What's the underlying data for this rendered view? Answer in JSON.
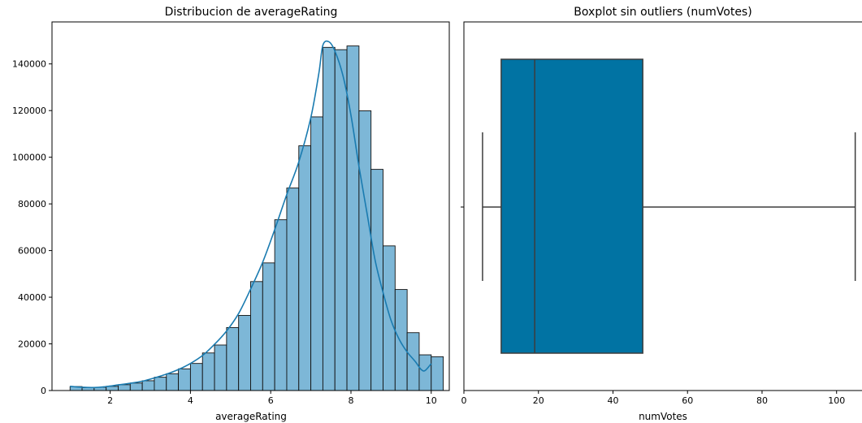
{
  "chart_data": [
    {
      "type": "histogram",
      "title": "Distribucion de averageRating",
      "xlabel": "averageRating",
      "ylabel": "",
      "xlim": [
        0.55,
        10.45
      ],
      "ylim": [
        0,
        158000
      ],
      "xticks": [
        2,
        4,
        6,
        8,
        10
      ],
      "yticks": [
        0,
        20000,
        40000,
        60000,
        80000,
        100000,
        120000,
        140000
      ],
      "bins": {
        "start": 1.0,
        "width": 0.3,
        "counts": [
          1700,
          1200,
          1400,
          1800,
          2500,
          3200,
          4200,
          5700,
          7200,
          9300,
          11600,
          16100,
          19500,
          27000,
          32200,
          46700,
          54700,
          73200,
          86800,
          104900,
          117300,
          147100,
          146100,
          147700,
          119900,
          94800,
          62000,
          43300,
          24800,
          15300,
          14500
        ]
      },
      "colors": {
        "bar": "#7db7d7",
        "edge": "#111111",
        "kde": "#1a7bb0"
      },
      "kde": [
        [
          1.0,
          1800
        ],
        [
          1.3,
          1400
        ],
        [
          1.6,
          1300
        ],
        [
          1.9,
          1700
        ],
        [
          2.2,
          2400
        ],
        [
          2.5,
          3100
        ],
        [
          2.8,
          4000
        ],
        [
          3.1,
          5400
        ],
        [
          3.4,
          7000
        ],
        [
          3.7,
          9000
        ],
        [
          4.0,
          11600
        ],
        [
          4.3,
          15000
        ],
        [
          4.6,
          19800
        ],
        [
          4.9,
          25500
        ],
        [
          5.2,
          33000
        ],
        [
          5.5,
          43500
        ],
        [
          5.8,
          55000
        ],
        [
          6.1,
          69000
        ],
        [
          6.4,
          84000
        ],
        [
          6.7,
          98000
        ],
        [
          7.0,
          117000
        ],
        [
          7.2,
          136000
        ],
        [
          7.3,
          148000
        ],
        [
          7.45,
          149500
        ],
        [
          7.6,
          145500
        ],
        [
          7.8,
          135000
        ],
        [
          8.0,
          118000
        ],
        [
          8.2,
          96000
        ],
        [
          8.4,
          76000
        ],
        [
          8.6,
          56000
        ],
        [
          8.8,
          42000
        ],
        [
          9.0,
          30000
        ],
        [
          9.2,
          22000
        ],
        [
          9.4,
          16500
        ],
        [
          9.6,
          12500
        ],
        [
          9.75,
          9000
        ],
        [
          9.85,
          8600
        ],
        [
          10.0,
          11500
        ]
      ]
    },
    {
      "type": "boxplot",
      "title": "Boxplot sin outliers (numVotes)",
      "xlabel": "numVotes",
      "xlim": [
        0,
        109
      ],
      "xticks": [
        0,
        20,
        40,
        60,
        80,
        100
      ],
      "box": {
        "whisker_low": 5,
        "q1": 10,
        "median": 19,
        "q3": 48,
        "whisker_high": 105
      },
      "colors": {
        "box": "#0173a3",
        "line": "#3d3d3d"
      }
    }
  ]
}
